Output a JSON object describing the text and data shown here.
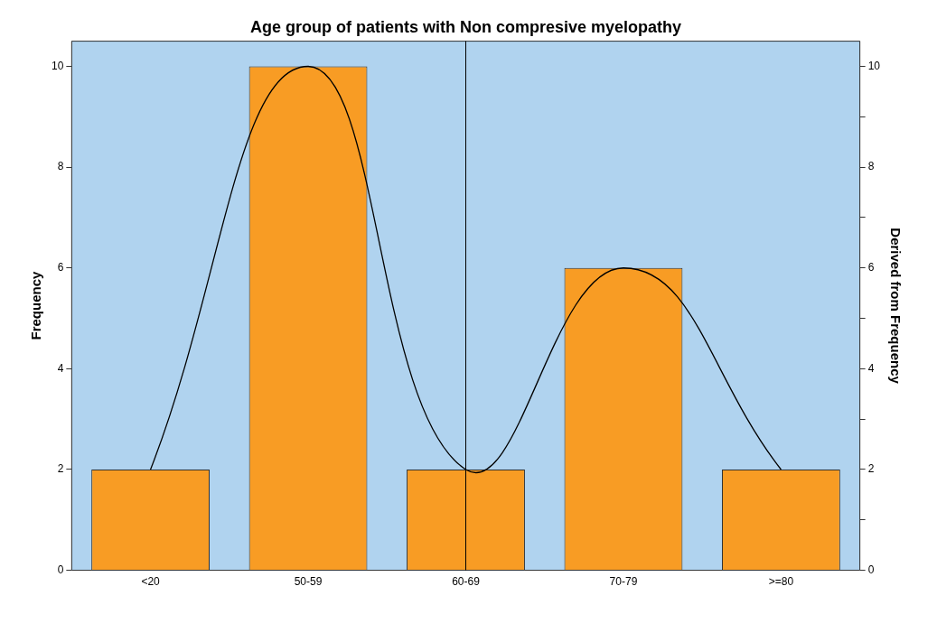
{
  "chart_data": {
    "type": "bar",
    "title": "Age group of patients with Non compresive myelopathy",
    "categories": [
      "<20",
      "50-59",
      "60-69",
      "70-79",
      ">=80"
    ],
    "series": [
      {
        "color": "#f89c24",
        "values": [
          2,
          10,
          2,
          6,
          2
        ]
      },
      {
        "type": "line",
        "color": "#000000",
        "axis": "y2",
        "values": [
          2,
          10,
          2,
          6,
          2
        ]
      }
    ],
    "ylabel": "Frequency",
    "y2label": "Derived from Frequency",
    "ylim": [
      0,
      10.5
    ],
    "yticks": [
      0,
      2,
      4,
      6,
      8,
      10
    ],
    "y2lim": [
      0,
      10.5
    ],
    "y2ticks": [
      0,
      {
        "value": 1,
        "label": null
      },
      2,
      {
        "value": 3,
        "label": null
      },
      4,
      {
        "value": 5,
        "label": null
      },
      6,
      {
        "value": 7,
        "label": null
      },
      8,
      {
        "value": 9,
        "label": null
      },
      10
    ],
    "ref_lines": [
      {
        "axis": "x",
        "value": "60-69",
        "color": "#000000"
      }
    ],
    "grid": false,
    "legend": false,
    "marker": "none"
  }
}
